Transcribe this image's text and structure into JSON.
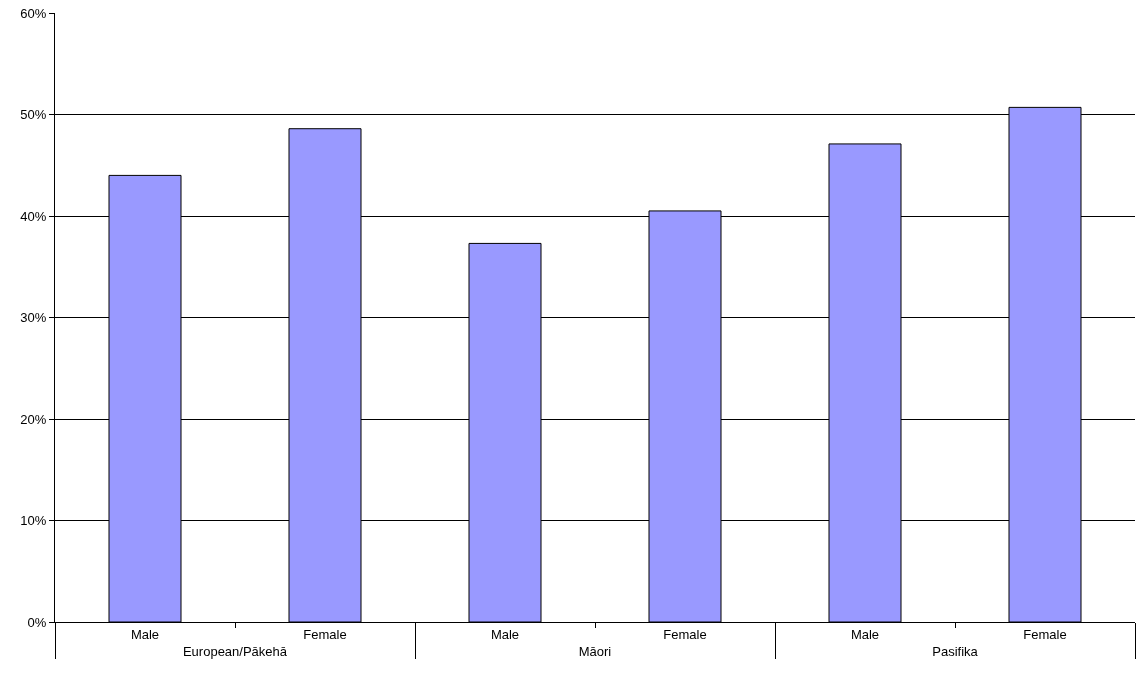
{
  "chart_data": {
    "type": "bar",
    "categories": [
      "Male",
      "Female",
      "Male",
      "Female",
      "Male",
      "Female"
    ],
    "annotations": [
      "European/Pākehā",
      "Māori",
      "Pasifika"
    ],
    "values": [
      44.0,
      48.6,
      37.3,
      40.5,
      47.1,
      50.7
    ],
    "color": "#9999ff",
    "ylim": [
      0,
      60
    ],
    "yticks": [
      {
        "value": 0,
        "label": "0%"
      },
      {
        "value": 10,
        "label": "10%"
      },
      {
        "value": 20,
        "label": "20%"
      },
      {
        "value": 30,
        "label": "30%"
      },
      {
        "value": 40,
        "label": "40%"
      },
      {
        "value": 50,
        "label": "50%"
      },
      {
        "value": 60,
        "label": "60%"
      }
    ],
    "grid": "y",
    "legend": false
  }
}
